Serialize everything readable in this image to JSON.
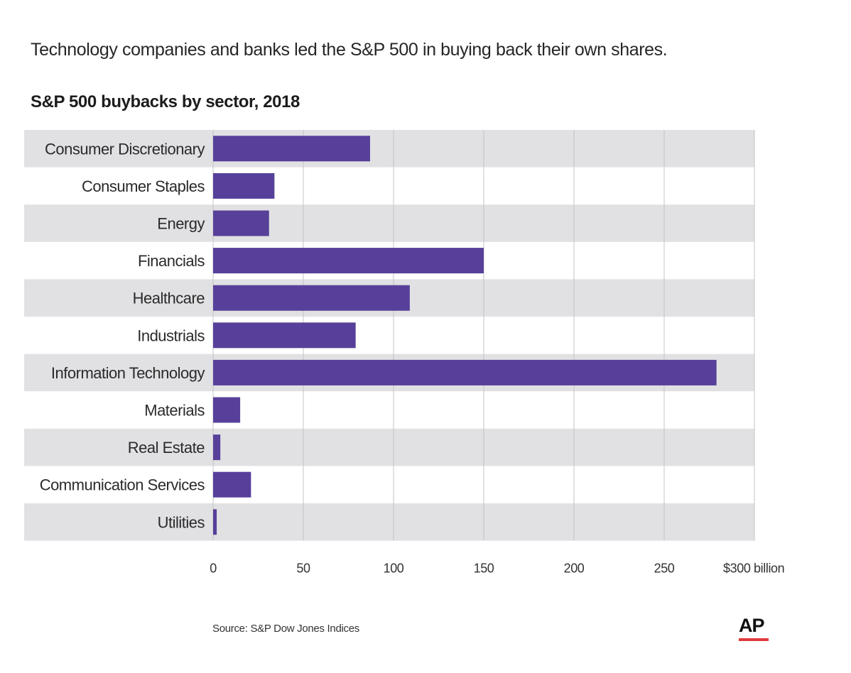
{
  "subtitle": "Technology companies and banks led the S&P 500 in buying back their own shares.",
  "title": "S&P 500 buybacks by sector, 2018",
  "source": "Source: S&P Dow Jones Indices",
  "logo": "AP",
  "colors": {
    "bar": "#574099",
    "band": "#e1e1e4",
    "grid": "#c4c4c4",
    "logo_accent": "#e03a3e"
  },
  "chart_data": {
    "type": "bar",
    "orientation": "horizontal",
    "title": "S&P 500 buybacks by sector, 2018",
    "categories": [
      "Consumer Discretionary",
      "Consumer Staples",
      "Energy",
      "Financials",
      "Healthcare",
      "Industrials",
      "Information Technology",
      "Materials",
      "Real Estate",
      "Communication Services",
      "Utilities"
    ],
    "values": [
      87,
      34,
      31,
      150,
      109,
      79,
      279,
      15,
      4,
      21,
      2
    ],
    "xlim": [
      0,
      300
    ],
    "ticks": [
      0,
      50,
      100,
      150,
      200,
      250,
      300
    ],
    "tick_labels": [
      "0",
      "50",
      "100",
      "150",
      "200",
      "250",
      "$300 billion"
    ],
    "grid": true,
    "alternating_bands": true
  }
}
